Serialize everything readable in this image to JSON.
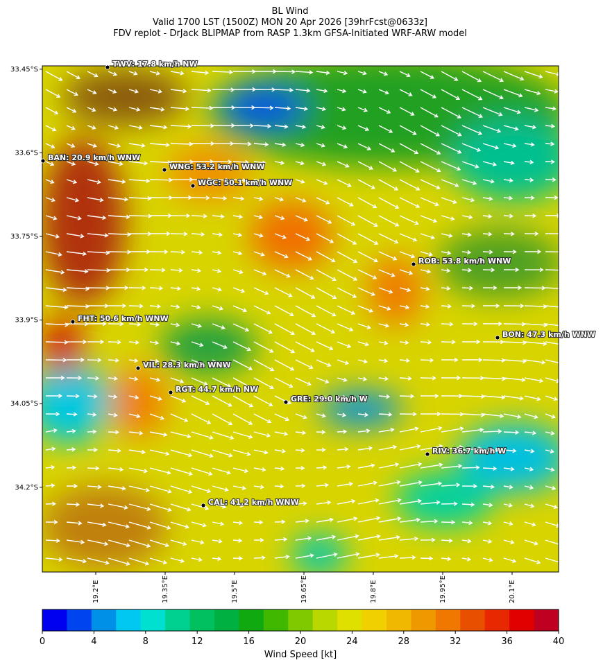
{
  "title_lines": [
    "BL Wind",
    "Valid 1700 LST (1500Z) MON 20 Apr 2026 [39hrFcst@0633z]",
    "FDV replot - DrJack BLIPMAP from RASP 1.3km GFSA-Initiated WRF-ARW model"
  ],
  "map": {
    "xlim": [
      19.0845,
      20.2005
    ],
    "ylim": [
      -34.352,
      -33.444
    ],
    "xticks": [
      {
        "value": 19.2,
        "label": "19.2°E"
      },
      {
        "value": 19.35,
        "label": "19.35°E"
      },
      {
        "value": 19.5,
        "label": "19.5°E"
      },
      {
        "value": 19.65,
        "label": "19.65°E"
      },
      {
        "value": 19.8,
        "label": "19.8°E"
      },
      {
        "value": 19.95,
        "label": "19.95°E"
      },
      {
        "value": 20.1,
        "label": "20.1°E"
      }
    ],
    "yticks": [
      {
        "value": -33.45,
        "label": "33.45°S"
      },
      {
        "value": -33.6,
        "label": "33.6°S"
      },
      {
        "value": -33.75,
        "label": "33.75°S"
      },
      {
        "value": -33.9,
        "label": "33.9°S"
      },
      {
        "value": -34.05,
        "label": "34.05°S"
      },
      {
        "value": -34.2,
        "label": "34.2°S"
      }
    ],
    "stations": [
      {
        "label": "TWV: 17.8 km/h NW"
      },
      {
        "label": "BAN: 20.9 km/h WNW"
      },
      {
        "label": "WNG: 53.2 km/h WNW"
      },
      {
        "label": "WGC: 50.1 km/h WNW"
      },
      {
        "label": "ROB: 53.8 km/h WNW"
      },
      {
        "label": "FHT: 50.6 km/h WNW"
      },
      {
        "label": "BON: 47.3 km/h WNW"
      },
      {
        "label": "VIL: 28.3 km/h WNW"
      },
      {
        "label": "RGT: 44.7 km/h NW"
      },
      {
        "label": "GRE: 29.0 km/h W"
      },
      {
        "label": "RIV: 36.7 km/h W"
      },
      {
        "label": "CAL: 41.2 km/h WNW"
      }
    ]
  },
  "colorbar": {
    "label": "Wind Speed [kt]",
    "range": [
      0,
      40
    ],
    "ticks": [
      0,
      4,
      8,
      12,
      16,
      20,
      24,
      28,
      32,
      36,
      40
    ],
    "colors": [
      "#0000f0",
      "#0044f0",
      "#0090e8",
      "#00c8f0",
      "#00e0d0",
      "#00d090",
      "#00c060",
      "#00b040",
      "#10aa10",
      "#40b800",
      "#80c800",
      "#b8d800",
      "#e0e000",
      "#f0d000",
      "#f0b800",
      "#f09800",
      "#f07800",
      "#e85000",
      "#e82800",
      "#e00000",
      "#c00020"
    ]
  }
}
